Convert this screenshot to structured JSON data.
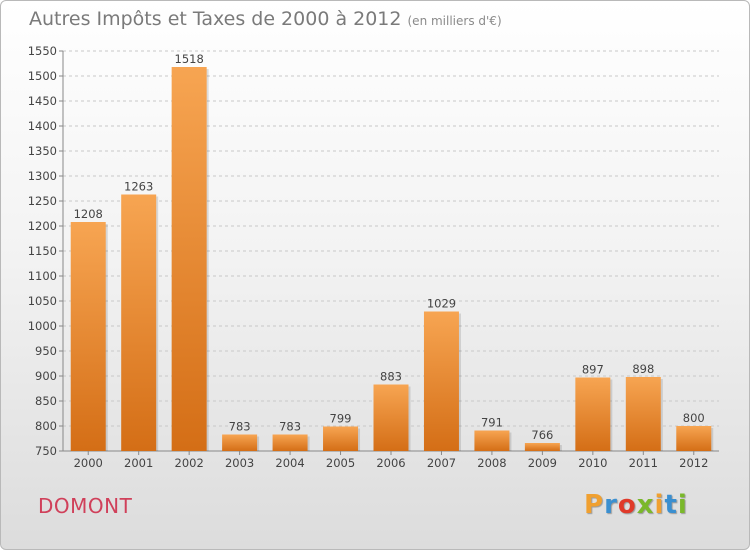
{
  "header": {
    "title": "Autres Impôts et Taxes de 2000 à 2012",
    "subtitle": "(en milliers d'€)"
  },
  "commune": "DOMONT",
  "logo": {
    "letters": [
      "P",
      "r",
      "o",
      "x",
      "i",
      "t",
      "i"
    ],
    "colors": [
      "#f0a030",
      "#3a8fd0",
      "#e03a2a",
      "#7ab82a",
      "#f0a030",
      "#3a8fd0",
      "#7ab82a"
    ]
  },
  "chart_data": {
    "type": "bar",
    "title": "Autres Impôts et Taxes de 2000 à 2012",
    "subtitle": "(en milliers d'€)",
    "categories": [
      "2000",
      "2001",
      "2002",
      "2003",
      "2004",
      "2005",
      "2006",
      "2007",
      "2008",
      "2009",
      "2010",
      "2011",
      "2012"
    ],
    "values": [
      1208,
      1263,
      1518,
      783,
      783,
      799,
      883,
      1029,
      791,
      766,
      897,
      898,
      800
    ],
    "ylim": [
      750,
      1550
    ],
    "yticks": [
      750,
      800,
      850,
      900,
      950,
      1000,
      1050,
      1100,
      1150,
      1200,
      1250,
      1300,
      1350,
      1400,
      1450,
      1500,
      1550
    ],
    "grid": true,
    "data_labels": true,
    "bar_color": "#e8882e"
  }
}
